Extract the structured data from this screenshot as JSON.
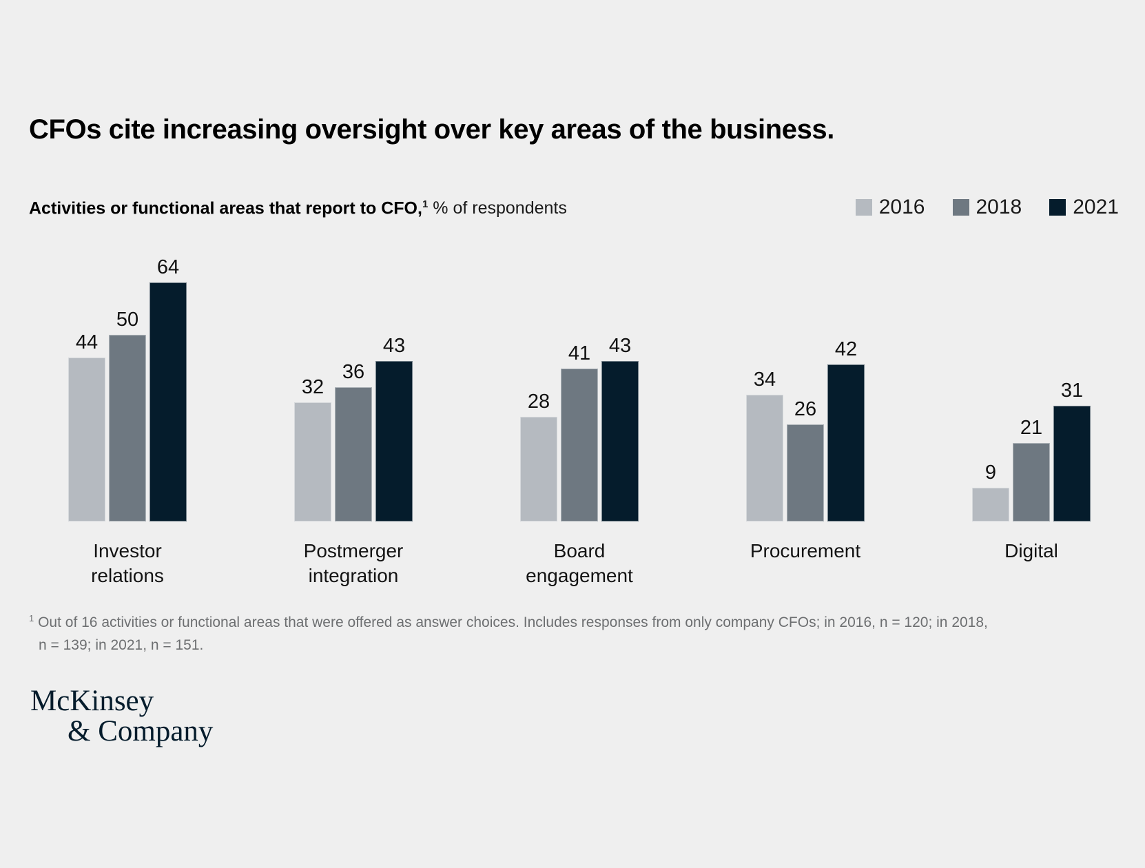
{
  "title": "CFOs cite increasing oversight over key areas of the business.",
  "subtitle": {
    "bold": "Activities or functional areas that report to CFO,",
    "superscript": "1",
    "regular": "% of respondents"
  },
  "colors": {
    "background": "#efefef",
    "series_2016": "#b5bac0",
    "series_2018": "#6e7881",
    "series_2021": "#051c2c",
    "footnote_text": "#6d6f71",
    "logo": "#051c2c"
  },
  "chart_data": {
    "type": "bar",
    "title": "Activities or functional areas that report to CFO, % of respondents",
    "categories": [
      "Investor relations",
      "Postmerger integration",
      "Board engagement",
      "Procurement",
      "Digital"
    ],
    "category_lines": [
      [
        "Investor",
        "relations"
      ],
      [
        "Postmerger",
        "integration"
      ],
      [
        "Board",
        "engagement"
      ],
      [
        "Procurement"
      ],
      [
        "Digital"
      ]
    ],
    "series": [
      {
        "name": "2016",
        "color": "#b5bac0",
        "values": [
          44,
          32,
          28,
          34,
          9
        ]
      },
      {
        "name": "2018",
        "color": "#6e7881",
        "values": [
          50,
          36,
          41,
          26,
          21
        ]
      },
      {
        "name": "2021",
        "color": "#051c2c",
        "values": [
          64,
          43,
          43,
          42,
          31
        ]
      }
    ],
    "ylim": [
      0,
      64
    ],
    "value_labels": true,
    "grid": false,
    "axes": "hidden",
    "legend_position": "top-right"
  },
  "footnote": {
    "superscript": "1",
    "line1": "Out of 16 activities or functional areas that were offered as answer choices. Includes responses from only company CFOs; in 2016, n = 120; in 2018,",
    "line2": "n = 139; in 2021, n = 151."
  },
  "logo": {
    "line1": "McKinsey",
    "line2": "& Company"
  }
}
